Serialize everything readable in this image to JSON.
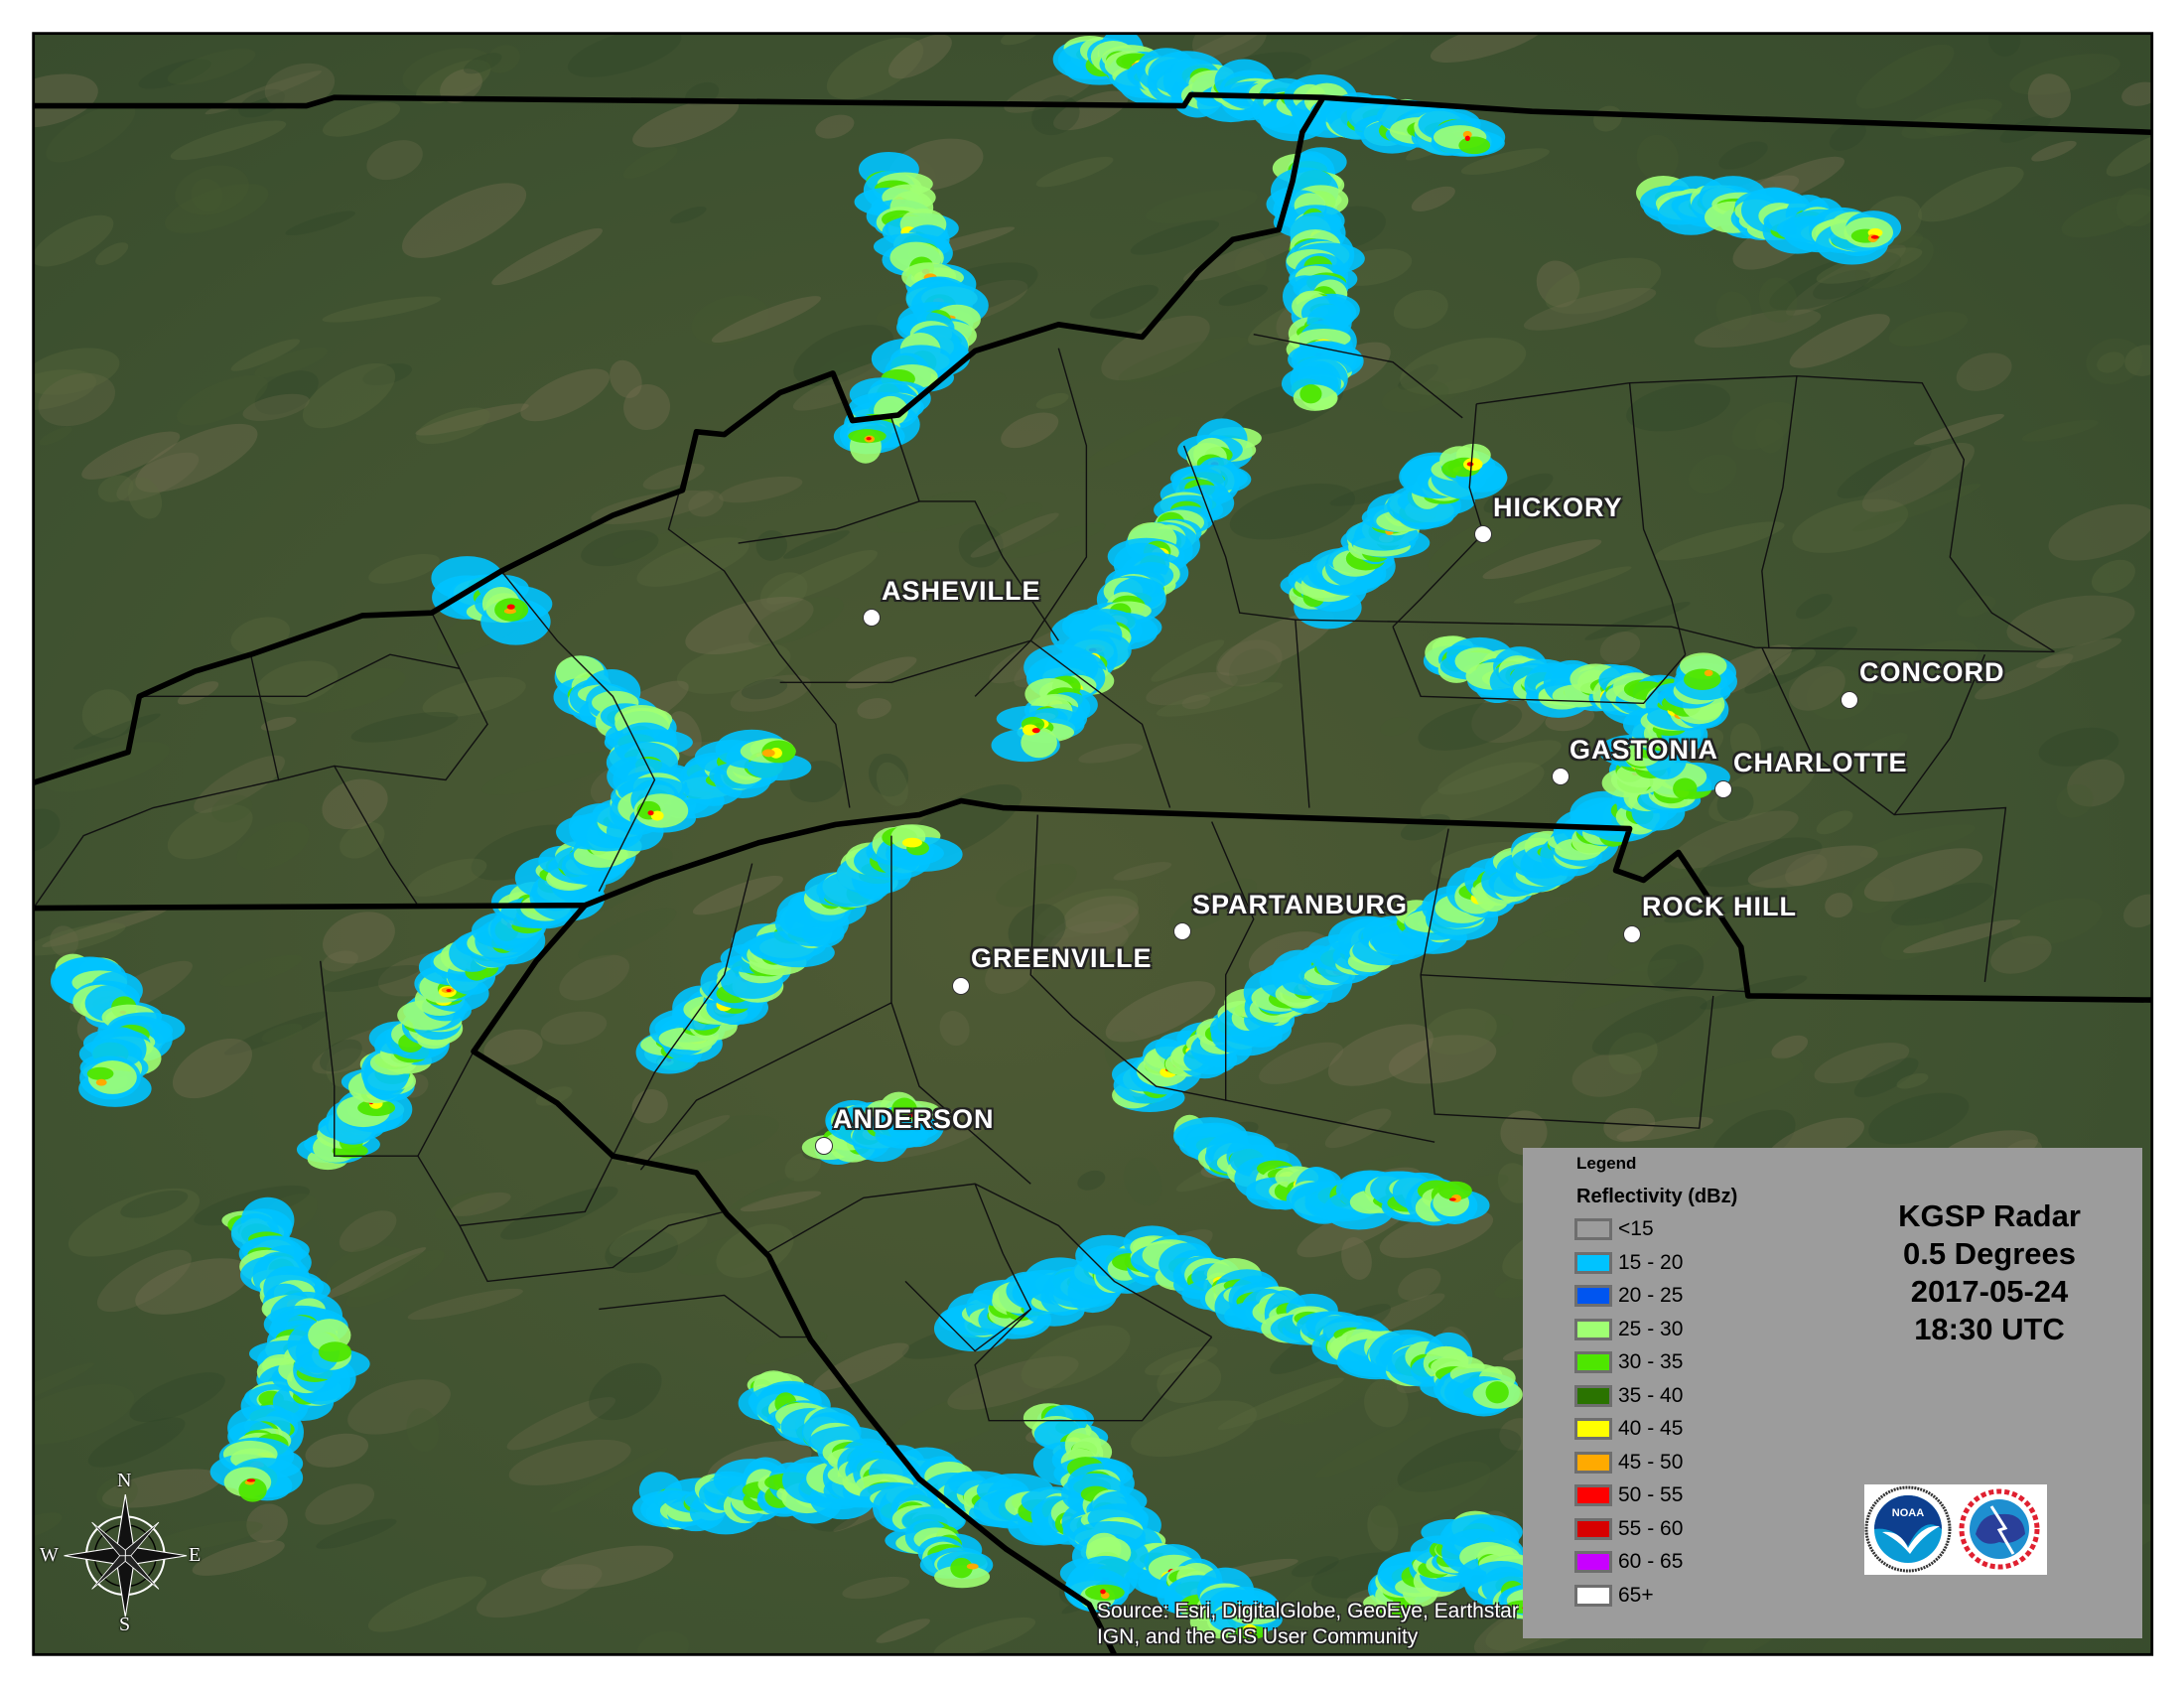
{
  "map": {
    "cities": [
      {
        "name": "HICKORY"
      },
      {
        "name": "ASHEVILLE"
      },
      {
        "name": "CONCORD"
      },
      {
        "name": "GASTONIA"
      },
      {
        "name": "CHARLOTTE"
      },
      {
        "name": "SPARTANBURG"
      },
      {
        "name": "ROCK HILL"
      },
      {
        "name": "GREENVILLE"
      },
      {
        "name": "ANDERSON"
      }
    ],
    "source_line1": "Source: Esri, DigitalGlobe, GeoEye, Earthstar Geographics,",
    "source_line2": "IGN, and the GIS User Community",
    "compass": {
      "n": "N",
      "s": "S",
      "e": "E",
      "w": "W"
    }
  },
  "legend": {
    "heading": "Legend",
    "layer_title": "Reflectivity (dBz)",
    "items": [
      {
        "label": "<15",
        "color": "#9c9c9c"
      },
      {
        "label": "15 - 20",
        "color": "#00c3ff"
      },
      {
        "label": "20 - 25",
        "color": "#0055f0"
      },
      {
        "label": "25 - 30",
        "color": "#a0ff73"
      },
      {
        "label": "30 - 35",
        "color": "#4ee600"
      },
      {
        "label": "35 - 40",
        "color": "#2a7300"
      },
      {
        "label": "40 - 45",
        "color": "#ffff00"
      },
      {
        "label": "45 - 50",
        "color": "#ffaa00"
      },
      {
        "label": "50 - 55",
        "color": "#ff0000"
      },
      {
        "label": "55 - 60",
        "color": "#d70000"
      },
      {
        "label": "60 - 65",
        "color": "#c800ff"
      },
      {
        "label": "65+",
        "color": "#ffffff"
      }
    ]
  },
  "title": {
    "radar": "KGSP Radar",
    "elevation": "0.5 Degrees",
    "date": "2017-05-24",
    "time": "18:30 UTC"
  },
  "logos": {
    "noaa": "NOAA",
    "nws": "NATIONAL WEATHER SERVICE"
  }
}
